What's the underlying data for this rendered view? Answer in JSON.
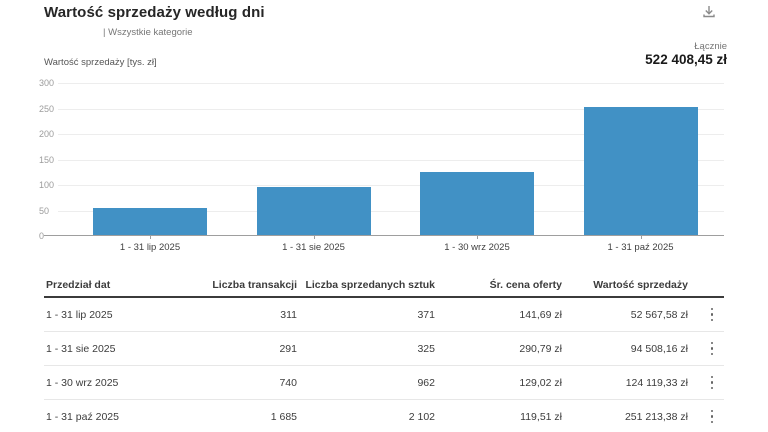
{
  "header": {
    "title": "Wartość sprzedaży według dni",
    "subtitle": "| Wszystkie kategorie"
  },
  "summary": {
    "label": "Łącznie",
    "value": "522 408,45 zł"
  },
  "chart_data": {
    "type": "bar",
    "title": "Wartość sprzedaży według dni",
    "ylabel": "Wartość sprzedaży [tys. zł]",
    "categories": [
      "1 - 31 lip 2025",
      "1 - 31 sie 2025",
      "1 - 30 wrz 2025",
      "1 - 31 paź 2025"
    ],
    "values": [
      52.57,
      94.51,
      124.12,
      251.21
    ],
    "unit": "tys. zł",
    "ylim": [
      0,
      300
    ],
    "yticks": [
      0,
      50,
      100,
      150,
      200,
      250,
      300
    ],
    "bar_color": "#4191c5",
    "grid": true,
    "legend": "none"
  },
  "table": {
    "columns": {
      "date_range": "Przedział dat",
      "transactions": "Liczba transakcji",
      "units_sold": "Liczba sprzedanych sztuk",
      "avg_price": "Śr. cena oferty",
      "sales_value": "Wartość sprzedaży"
    },
    "rows": [
      {
        "date_range": "1 - 31 lip 2025",
        "transactions": "311",
        "units_sold": "371",
        "avg_price": "141,69 zł",
        "sales_value": "52 567,58 zł"
      },
      {
        "date_range": "1 - 31 sie 2025",
        "transactions": "291",
        "units_sold": "325",
        "avg_price": "290,79 zł",
        "sales_value": "94 508,16 zł"
      },
      {
        "date_range": "1 - 30 wrz 2025",
        "transactions": "740",
        "units_sold": "962",
        "avg_price": "129,02 zł",
        "sales_value": "124 119,33 zł"
      },
      {
        "date_range": "1 - 31 paź 2025",
        "transactions": "1 685",
        "units_sold": "2 102",
        "avg_price": "119,51 zł",
        "sales_value": "251 213,38 zł"
      }
    ]
  }
}
